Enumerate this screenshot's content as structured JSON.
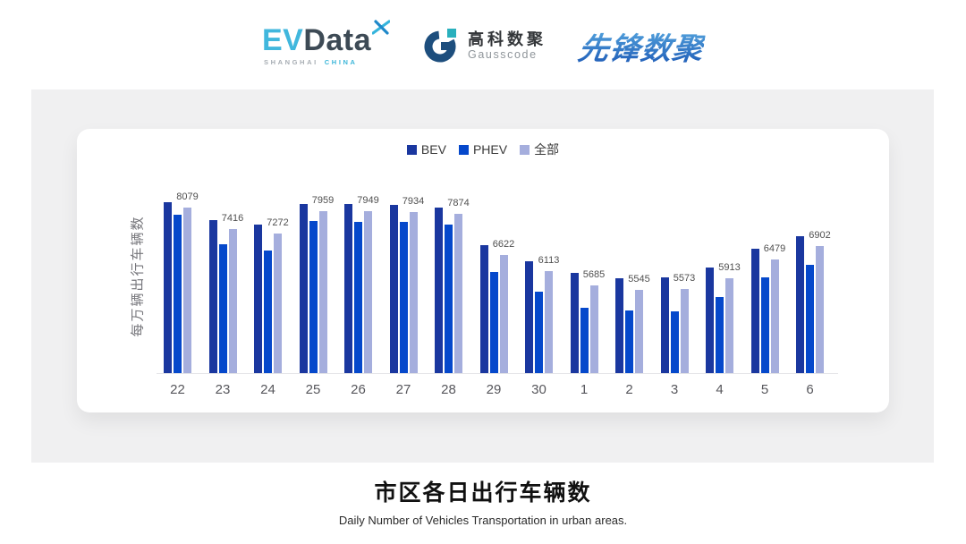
{
  "header": {
    "logos": {
      "evdata": {
        "ev": "EV",
        "data": "Data",
        "sub_left": "SHANGHAI",
        "sub_right": "CHINA"
      },
      "gausscode": {
        "cn": "高科数聚",
        "en": "Gausscode"
      },
      "xianfeng": {
        "text": "先锋数聚"
      }
    }
  },
  "chart_data": {
    "type": "bar",
    "title": "市区各日出行车辆数",
    "subtitle": "Daily Number of Vehicles Transportation in urban areas.",
    "ylabel": "每万辆出行车辆数",
    "categories": [
      "22",
      "23",
      "24",
      "25",
      "26",
      "27",
      "28",
      "29",
      "30",
      "1",
      "2",
      "3",
      "4",
      "5",
      "6"
    ],
    "series": [
      {
        "key": "bev",
        "name": "BEV",
        "color": "#1a379f",
        "labels_shown": false,
        "values": [
          8240,
          7700,
          7560,
          8180,
          8170,
          8140,
          8060,
          6920,
          6430,
          6070,
          5900,
          5930,
          6230,
          6800,
          7180
        ]
      },
      {
        "key": "phev",
        "name": "PHEV",
        "color": "#0548cb",
        "labels_shown": false,
        "values": [
          7850,
          6960,
          6750,
          7660,
          7640,
          7620,
          7550,
          6090,
          5500,
          5010,
          4920,
          4900,
          5330,
          5930,
          6320
        ]
      },
      {
        "key": "all",
        "name": "全部",
        "color": "#a5aedd",
        "labels_shown": true,
        "values": [
          8079,
          7416,
          7272,
          7959,
          7949,
          7934,
          7874,
          6622,
          6113,
          5685,
          5545,
          5573,
          5913,
          6479,
          6902
        ]
      }
    ],
    "ylim": [
      3000,
      9000
    ],
    "grid": false,
    "legend_position": "top",
    "note_bev_phev_values_estimated_from_bar_heights": true
  },
  "colors": {
    "panel_bg": "#f0f0f1",
    "card_bg": "#ffffff",
    "axis_line": "#e4e4e8",
    "tick_label": "#57575c",
    "value_label": "#4f4f4f",
    "legend_text": "#3a3a3a",
    "evdata_blue": "#41b7dd",
    "evdata_dark": "#3d4a55",
    "gauss_navy": "#1d4e7d",
    "gauss_teal": "#29b0bd",
    "xianfeng_blue_top": "#5caee3",
    "xianfeng_blue_bottom": "#1a56b4"
  }
}
